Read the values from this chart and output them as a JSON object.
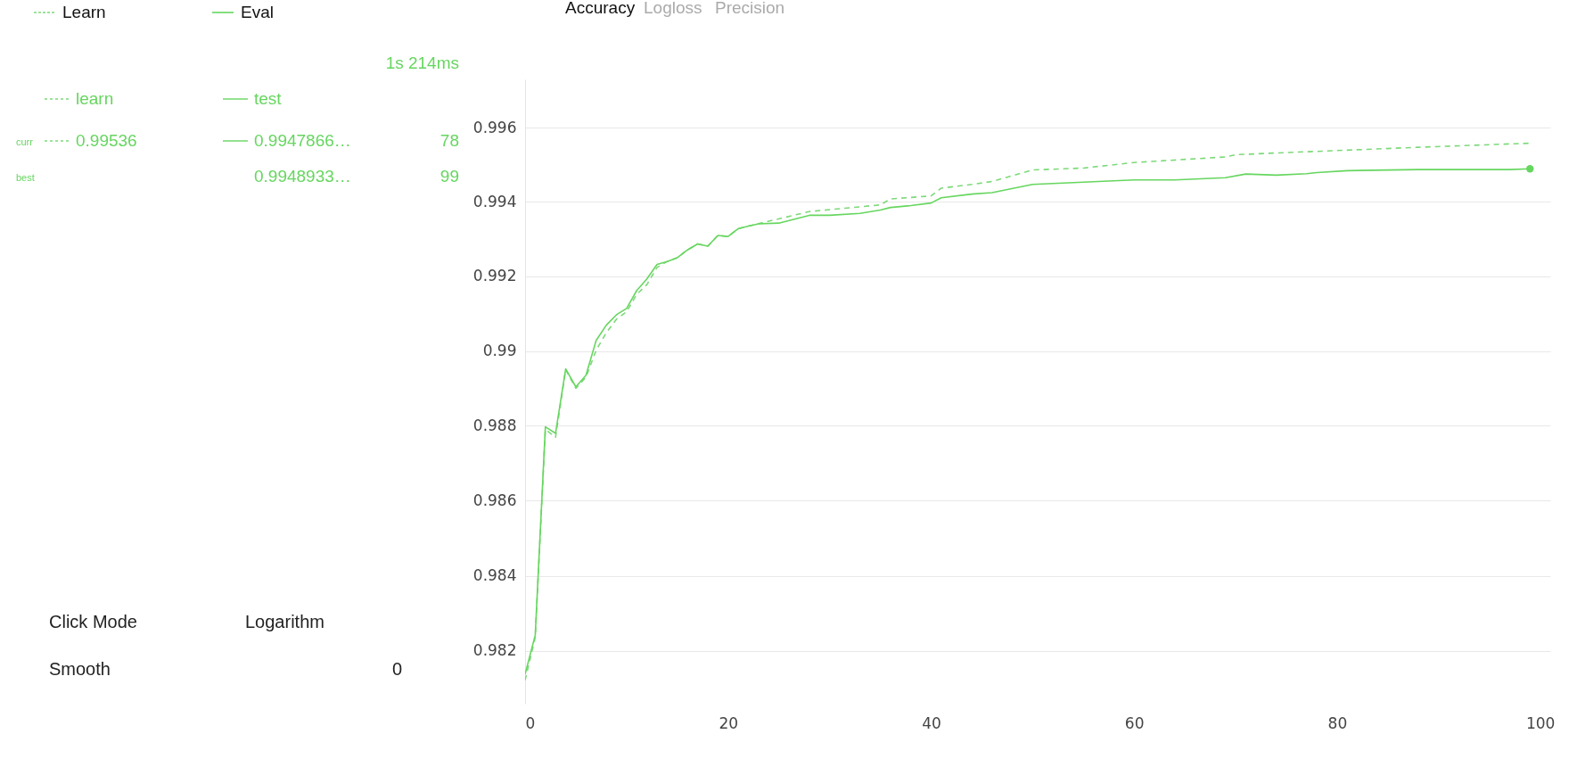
{
  "chart_data": {
    "type": "line",
    "title": "Accuracy",
    "xlim": [
      0,
      101
    ],
    "xticks": [
      0,
      20,
      40,
      60,
      80,
      100
    ],
    "ylim": [
      0.9806,
      0.9973
    ],
    "yticks": [
      0.982,
      0.984,
      0.986,
      0.988,
      0.99,
      0.992,
      0.994,
      0.996
    ],
    "log": "y",
    "grid": "y",
    "legend": "top left",
    "marker": "none",
    "series": [
      {
        "name": "Learn",
        "color": "#7dd97a",
        "line_style": "dashed",
        "x": [
          0,
          1,
          2,
          3,
          4,
          5,
          6,
          7,
          8,
          9,
          10,
          11,
          12,
          13,
          14,
          15,
          16,
          17,
          18,
          19,
          20,
          21,
          22,
          24,
          28,
          35,
          36,
          40,
          41,
          44,
          46,
          50,
          55,
          60,
          69,
          70,
          77,
          78,
          88,
          99
        ],
        "values": [
          0.98122,
          0.98236,
          0.9879,
          0.98769,
          0.9895,
          0.989,
          0.9893,
          0.99002,
          0.99049,
          0.99085,
          0.99105,
          0.99152,
          0.99178,
          0.99224,
          0.9924,
          0.9925,
          0.99271,
          0.99287,
          0.99281,
          0.9931,
          0.99307,
          0.99328,
          0.99335,
          0.99348,
          0.99374,
          0.99392,
          0.99408,
          0.99416,
          0.99437,
          0.99447,
          0.99455,
          0.99486,
          0.99491,
          0.99506,
          0.99521,
          0.99527,
          0.99535,
          0.99536,
          0.99547,
          0.99558
        ]
      },
      {
        "name": "Eval",
        "color": "#66d65f",
        "line_style": "solid",
        "x": [
          0,
          1,
          2,
          3,
          4,
          5,
          6,
          7,
          8,
          9,
          10,
          11,
          12,
          13,
          14,
          15,
          16,
          17,
          18,
          19,
          20,
          21,
          22,
          23,
          25,
          28,
          30,
          33,
          35,
          36,
          38,
          40,
          41,
          44,
          46,
          50,
          54,
          60,
          64,
          69,
          71,
          74,
          77,
          78,
          81,
          88,
          97,
          99
        ],
        "values": [
          0.98138,
          0.98242,
          0.98797,
          0.9878,
          0.98952,
          0.98904,
          0.98935,
          0.99028,
          0.99069,
          0.99097,
          0.99114,
          0.99162,
          0.99193,
          0.99232,
          0.9924,
          0.9925,
          0.99271,
          0.99287,
          0.99281,
          0.9931,
          0.99307,
          0.99328,
          0.99335,
          0.99341,
          0.99343,
          0.99364,
          0.99364,
          0.99369,
          0.99378,
          0.99385,
          0.9939,
          0.99397,
          0.99411,
          0.99421,
          0.99425,
          0.99447,
          0.99452,
          0.99459,
          0.99459,
          0.99465,
          0.99475,
          0.99472,
          0.99476,
          0.99479,
          0.99484,
          0.99487,
          0.99487,
          0.99489
        ]
      },
      {
        "type": "scatter",
        "color": "#66d65f",
        "marker": "circle",
        "x": [
          99
        ],
        "values": [
          0.99489
        ]
      }
    ],
    "annotations": [
      "Logloss",
      "Precision",
      "1s 214ms",
      "learn",
      "test",
      "curr",
      "0.99536",
      "0.9947866…",
      "78",
      "best",
      "0.9948933…",
      "99",
      "Click Mode",
      "Logarithm",
      "Smooth",
      "0"
    ]
  }
}
